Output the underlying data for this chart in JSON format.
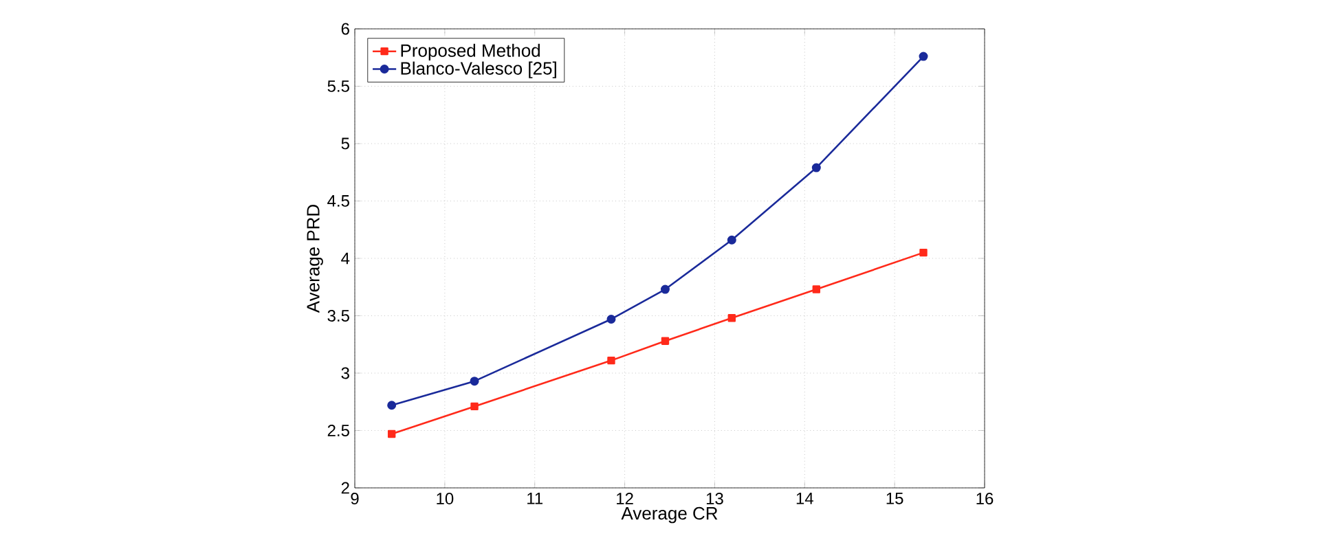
{
  "chart_data": {
    "type": "line",
    "xlabel": "Average CR",
    "ylabel": "Average PRD",
    "xlim": [
      9,
      16
    ],
    "xticks": [
      9,
      10,
      11,
      12,
      13,
      14,
      15,
      16
    ],
    "ylim": [
      2,
      6
    ],
    "yticks": [
      2,
      2.5,
      3,
      3.5,
      4,
      4.5,
      5,
      5.5,
      6
    ],
    "grid": true,
    "legend": "top left",
    "series": [
      {
        "name": "Proposed Method",
        "color": "#ff2a1a",
        "marker": "square",
        "x": [
          9.41,
          10.33,
          11.85,
          12.45,
          13.19,
          14.13,
          15.32
        ],
        "values": [
          2.47,
          2.71,
          3.11,
          3.28,
          3.48,
          3.73,
          4.05
        ]
      },
      {
        "name": "Blanco-Valesco [25]",
        "color": "#1a2a9a",
        "marker": "circle",
        "x": [
          9.41,
          10.33,
          11.85,
          12.45,
          13.19,
          14.13,
          15.32
        ],
        "values": [
          2.72,
          2.93,
          3.47,
          3.73,
          4.16,
          4.79,
          5.76
        ]
      }
    ]
  }
}
